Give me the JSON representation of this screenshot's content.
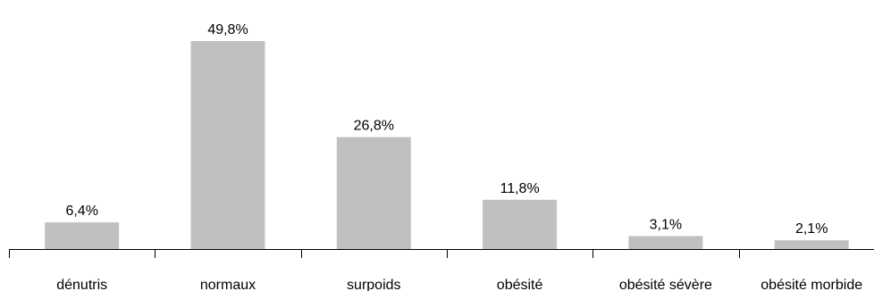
{
  "chart_data": {
    "type": "bar",
    "categories": [
      "dénutris",
      "normaux",
      "surpoids",
      "obésité",
      "obésité sévère",
      "obésité morbide"
    ],
    "values": [
      6.4,
      49.8,
      26.8,
      11.8,
      3.1,
      2.1
    ],
    "value_labels": [
      "6,4%",
      "49,8%",
      "26,8%",
      "11,8%",
      "3,1%",
      "2,1%"
    ],
    "title": "",
    "xlabel": "",
    "ylabel": "",
    "ylim": [
      0,
      49.8
    ],
    "grid": false,
    "legend": "none",
    "bar_color": "#c0c0c0"
  }
}
